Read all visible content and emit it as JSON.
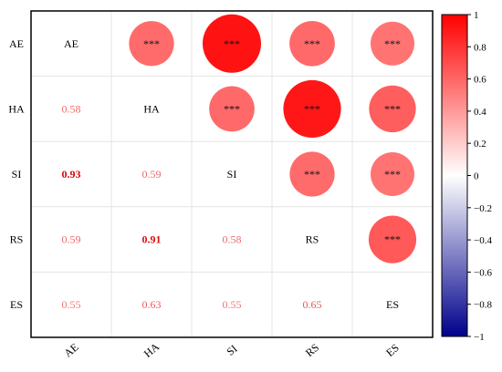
{
  "chart_data": {
    "type": "heatmap",
    "subtype": "correlation-matrix",
    "variables": [
      "AE",
      "HA",
      "SI",
      "RS",
      "ES"
    ],
    "matrix": [
      [
        1.0,
        0.58,
        0.93,
        0.59,
        0.55
      ],
      [
        0.58,
        1.0,
        0.59,
        0.91,
        0.63
      ],
      [
        0.93,
        0.59,
        1.0,
        0.58,
        0.55
      ],
      [
        0.59,
        0.91,
        0.58,
        1.0,
        0.65
      ],
      [
        0.55,
        0.63,
        0.55,
        0.65,
        1.0
      ]
    ],
    "lower_triangle_labels": [
      [
        "",
        "",
        "",
        "",
        ""
      ],
      [
        "0.58",
        "",
        "",
        "",
        ""
      ],
      [
        "0.93",
        "0.59",
        "",
        "",
        ""
      ],
      [
        "0.59",
        "0.91",
        "0.58",
        "",
        ""
      ],
      [
        "0.55",
        "0.63",
        "0.55",
        "0.65",
        ""
      ]
    ],
    "upper_triangle_display": "circles",
    "significance_label": "***",
    "row_labels": [
      "AE",
      "HA",
      "SI",
      "RS",
      "ES"
    ],
    "col_labels": [
      "AE",
      "HA",
      "SI",
      "RS",
      "ES"
    ],
    "diagonal_labels": [
      "AE",
      "HA",
      "SI",
      "RS",
      "ES"
    ],
    "colorbar": {
      "range": [
        -1,
        1
      ],
      "ticks": [
        "1",
        "0.8",
        "0.6",
        "0.4",
        "0.2",
        "0",
        "−0.2",
        "−0.4",
        "−0.6",
        "−0.8",
        "−1"
      ],
      "tick_values": [
        1,
        0.8,
        0.6,
        0.4,
        0.2,
        0,
        -0.2,
        -0.4,
        -0.6,
        -0.8,
        -1
      ],
      "colors": {
        "negative": "#00008b",
        "neutral": "#ffffff",
        "positive": "#ff0000"
      },
      "placement": "right"
    },
    "grid": true
  }
}
